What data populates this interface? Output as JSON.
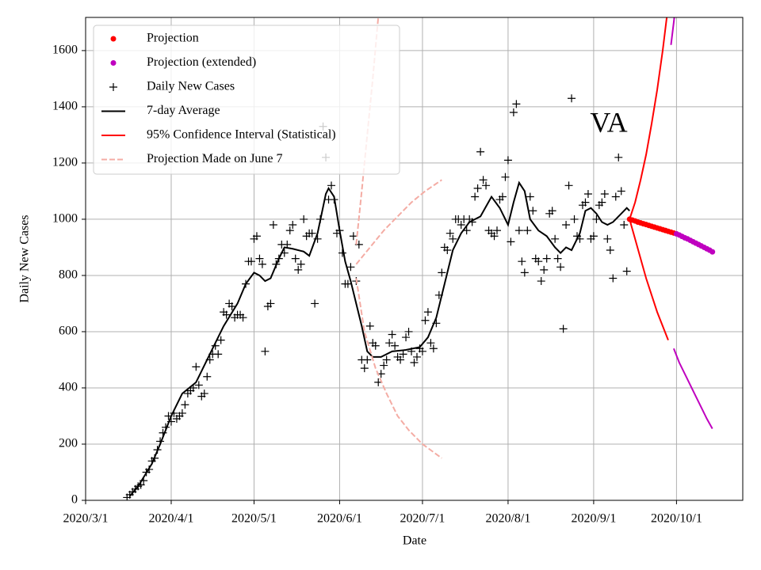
{
  "chart_data": {
    "type": "line",
    "annotation": "VA",
    "xlabel": "Date",
    "ylabel": "Daily New Cases",
    "xlim": [
      "2020-03-01",
      "2020-10-25"
    ],
    "xticks": [
      {
        "value": "2020-03-01",
        "label": "2020/3/1"
      },
      {
        "value": "2020-04-01",
        "label": "2020/4/1"
      },
      {
        "value": "2020-05-01",
        "label": "2020/5/1"
      },
      {
        "value": "2020-06-01",
        "label": "2020/6/1"
      },
      {
        "value": "2020-07-01",
        "label": "2020/7/1"
      },
      {
        "value": "2020-08-01",
        "label": "2020/8/1"
      },
      {
        "value": "2020-09-01",
        "label": "2020/9/1"
      },
      {
        "value": "2020-10-01",
        "label": "2020/10/1"
      }
    ],
    "ylim": [
      0,
      1718
    ],
    "yticks": [
      0,
      200,
      400,
      600,
      800,
      1000,
      1200,
      1400,
      1600
    ],
    "grid": true,
    "legend": "upper left",
    "series": [
      {
        "name": "Projection",
        "style": "dot",
        "color": "#ff0000",
        "x": [
          "2020-09-14",
          "2020-09-15",
          "2020-09-16",
          "2020-09-17",
          "2020-09-18",
          "2020-09-19",
          "2020-09-20",
          "2020-09-21",
          "2020-09-22",
          "2020-09-23",
          "2020-09-24",
          "2020-09-25",
          "2020-09-26",
          "2020-09-27",
          "2020-09-28",
          "2020-09-29",
          "2020-09-30"
        ],
        "values": [
          1000,
          997,
          994,
          990,
          987,
          984,
          981,
          978,
          975,
          972,
          969,
          966,
          963,
          960,
          957,
          954,
          951
        ]
      },
      {
        "name": "Projection (extended)",
        "style": "dot",
        "color": "#bf00bf",
        "x": [
          "2020-10-01",
          "2020-10-02",
          "2020-10-03",
          "2020-10-04",
          "2020-10-05",
          "2020-10-06",
          "2020-10-07",
          "2020-10-08",
          "2020-10-09",
          "2020-10-10",
          "2020-10-11",
          "2020-10-12",
          "2020-10-13",
          "2020-10-14"
        ],
        "values": [
          948,
          944,
          939,
          934,
          930,
          925,
          920,
          915,
          910,
          905,
          900,
          895,
          890,
          884
        ]
      },
      {
        "name": "Daily New Cases",
        "style": "plus",
        "color": "#000000",
        "x": [
          "2020-03-16",
          "2020-03-17",
          "2020-03-18",
          "2020-03-19",
          "2020-03-20",
          "2020-03-21",
          "2020-03-22",
          "2020-03-23",
          "2020-03-24",
          "2020-03-25",
          "2020-03-26",
          "2020-03-27",
          "2020-03-28",
          "2020-03-29",
          "2020-03-30",
          "2020-03-31",
          "2020-04-01",
          "2020-04-02",
          "2020-04-03",
          "2020-04-04",
          "2020-04-05",
          "2020-04-06",
          "2020-04-07",
          "2020-04-08",
          "2020-04-09",
          "2020-04-10",
          "2020-04-11",
          "2020-04-12",
          "2020-04-13",
          "2020-04-14",
          "2020-04-15",
          "2020-04-16",
          "2020-04-17",
          "2020-04-18",
          "2020-04-19",
          "2020-04-20",
          "2020-04-21",
          "2020-04-22",
          "2020-04-23",
          "2020-04-24",
          "2020-04-25",
          "2020-04-26",
          "2020-04-27",
          "2020-04-28",
          "2020-04-29",
          "2020-04-30",
          "2020-05-01",
          "2020-05-02",
          "2020-05-03",
          "2020-05-04",
          "2020-05-05",
          "2020-05-06",
          "2020-05-07",
          "2020-05-08",
          "2020-05-09",
          "2020-05-10",
          "2020-05-11",
          "2020-05-12",
          "2020-05-13",
          "2020-05-14",
          "2020-05-15",
          "2020-05-16",
          "2020-05-17",
          "2020-05-18",
          "2020-05-19",
          "2020-05-20",
          "2020-05-21",
          "2020-05-22",
          "2020-05-23",
          "2020-05-24",
          "2020-05-25",
          "2020-05-26",
          "2020-05-27",
          "2020-05-28",
          "2020-05-29",
          "2020-05-30",
          "2020-05-31",
          "2020-06-01",
          "2020-06-02",
          "2020-06-03",
          "2020-06-04",
          "2020-06-05",
          "2020-06-06",
          "2020-06-07",
          "2020-06-08",
          "2020-06-09",
          "2020-06-10",
          "2020-06-11",
          "2020-06-12",
          "2020-06-13",
          "2020-06-14",
          "2020-06-15",
          "2020-06-16",
          "2020-06-17",
          "2020-06-18",
          "2020-06-19",
          "2020-06-20",
          "2020-06-21",
          "2020-06-22",
          "2020-06-23",
          "2020-06-24",
          "2020-06-25",
          "2020-06-26",
          "2020-06-27",
          "2020-06-28",
          "2020-06-29",
          "2020-06-30",
          "2020-07-01",
          "2020-07-02",
          "2020-07-03",
          "2020-07-04",
          "2020-07-05",
          "2020-07-06",
          "2020-07-07",
          "2020-07-08",
          "2020-07-09",
          "2020-07-10",
          "2020-07-11",
          "2020-07-12",
          "2020-07-13",
          "2020-07-14",
          "2020-07-15",
          "2020-07-16",
          "2020-07-17",
          "2020-07-18",
          "2020-07-19",
          "2020-07-20",
          "2020-07-21",
          "2020-07-22",
          "2020-07-23",
          "2020-07-24",
          "2020-07-25",
          "2020-07-26",
          "2020-07-27",
          "2020-07-28",
          "2020-07-29",
          "2020-07-30",
          "2020-07-31",
          "2020-08-01",
          "2020-08-02",
          "2020-08-03",
          "2020-08-04",
          "2020-08-05",
          "2020-08-06",
          "2020-08-07",
          "2020-08-08",
          "2020-08-09",
          "2020-08-10",
          "2020-08-11",
          "2020-08-12",
          "2020-08-13",
          "2020-08-14",
          "2020-08-15",
          "2020-08-16",
          "2020-08-17",
          "2020-08-18",
          "2020-08-19",
          "2020-08-20",
          "2020-08-21",
          "2020-08-22",
          "2020-08-23",
          "2020-08-24",
          "2020-08-25",
          "2020-08-26",
          "2020-08-27",
          "2020-08-28",
          "2020-08-29",
          "2020-08-30",
          "2020-08-31",
          "2020-09-01",
          "2020-09-02",
          "2020-09-03",
          "2020-09-04",
          "2020-09-05",
          "2020-09-06",
          "2020-09-07",
          "2020-09-08",
          "2020-09-09",
          "2020-09-10",
          "2020-09-11",
          "2020-09-12",
          "2020-09-13"
        ],
        "values": [
          10,
          20,
          30,
          40,
          50,
          55,
          70,
          100,
          110,
          140,
          150,
          180,
          210,
          240,
          260,
          300,
          280,
          310,
          290,
          300,
          310,
          340,
          380,
          390,
          400,
          475,
          410,
          370,
          380,
          440,
          500,
          520,
          550,
          520,
          570,
          670,
          660,
          700,
          690,
          650,
          660,
          660,
          650,
          770,
          850,
          850,
          930,
          940,
          860,
          840,
          530,
          690,
          700,
          980,
          840,
          860,
          910,
          880,
          910,
          960,
          980,
          860,
          820,
          840,
          1000,
          940,
          950,
          950,
          700,
          930,
          1000,
          1330,
          1220,
          1070,
          1120,
          1070,
          950,
          960,
          880,
          770,
          770,
          830,
          940,
          780,
          910,
          500,
          470,
          500,
          620,
          560,
          550,
          420,
          450,
          480,
          500,
          560,
          590,
          550,
          510,
          500,
          520,
          580,
          600,
          530,
          490,
          510,
          540,
          530,
          640,
          670,
          560,
          540,
          630,
          730,
          810,
          900,
          890,
          950,
          930,
          1000,
          1000,
          980,
          1000,
          960,
          1000,
          990,
          1080,
          1110,
          1240,
          1140,
          1120,
          960,
          950,
          940,
          960,
          1070,
          1080,
          1150,
          1210,
          920,
          1380,
          1410,
          960,
          850,
          810,
          960,
          1080,
          1030,
          860,
          850,
          780,
          820,
          860,
          1020,
          1030,
          930,
          860,
          830,
          610,
          980,
          1120,
          1430,
          1000,
          940,
          930,
          1050,
          1060,
          1090,
          930,
          940,
          1000,
          1050,
          1060,
          1090,
          930,
          890,
          790,
          1080,
          1220,
          1100,
          980,
          815
        ]
      },
      {
        "name": "7-day Average",
        "style": "line",
        "color": "#000000",
        "x": [
          "2020-03-17",
          "2020-03-20",
          "2020-03-25",
          "2020-03-28",
          "2020-04-01",
          "2020-04-05",
          "2020-04-10",
          "2020-04-15",
          "2020-04-20",
          "2020-04-25",
          "2020-04-28",
          "2020-05-01",
          "2020-05-03",
          "2020-05-05",
          "2020-05-07",
          "2020-05-10",
          "2020-05-12",
          "2020-05-15",
          "2020-05-19",
          "2020-05-21",
          "2020-05-24",
          "2020-05-27",
          "2020-05-28",
          "2020-05-30",
          "2020-06-01",
          "2020-06-03",
          "2020-06-05",
          "2020-06-07",
          "2020-06-09",
          "2020-06-11",
          "2020-06-13",
          "2020-06-16",
          "2020-06-20",
          "2020-06-25",
          "2020-06-30",
          "2020-07-03",
          "2020-07-06",
          "2020-07-09",
          "2020-07-12",
          "2020-07-15",
          "2020-07-18",
          "2020-07-22",
          "2020-07-26",
          "2020-07-29",
          "2020-08-01",
          "2020-08-03",
          "2020-08-05",
          "2020-08-07",
          "2020-08-09",
          "2020-08-12",
          "2020-08-15",
          "2020-08-18",
          "2020-08-20",
          "2020-08-22",
          "2020-08-24",
          "2020-08-27",
          "2020-08-29",
          "2020-08-31",
          "2020-09-02",
          "2020-09-04",
          "2020-09-06",
          "2020-09-08",
          "2020-09-11",
          "2020-09-13",
          "2020-09-14"
        ],
        "values": [
          15,
          50,
          130,
          200,
          300,
          380,
          420,
          520,
          620,
          700,
          770,
          810,
          800,
          780,
          790,
          860,
          900,
          895,
          885,
          870,
          950,
          1090,
          1110,
          1080,
          960,
          850,
          780,
          700,
          620,
          530,
          510,
          510,
          530,
          535,
          545,
          580,
          650,
          770,
          890,
          950,
          990,
          1010,
          1080,
          1040,
          980,
          1060,
          1130,
          1100,
          1000,
          960,
          940,
          900,
          880,
          900,
          890,
          950,
          1030,
          1040,
          1020,
          990,
          980,
          990,
          1020,
          1040,
          1030
        ]
      },
      {
        "name": "95% Confidence Interval (Statistical)",
        "style": "line",
        "color": "#ff0000",
        "segments": [
          {
            "color": "#ff0000",
            "x": [
              "2020-09-14",
              "2020-09-16",
              "2020-09-18",
              "2020-09-20",
              "2020-09-22",
              "2020-09-24",
              "2020-09-26",
              "2020-09-28"
            ],
            "values": [
              1000,
              1060,
              1140,
              1230,
              1340,
              1460,
              1600,
              1760
            ]
          },
          {
            "color": "#ff0000",
            "x": [
              "2020-09-14",
              "2020-09-16",
              "2020-09-18",
              "2020-09-20",
              "2020-09-22",
              "2020-09-24",
              "2020-09-26",
              "2020-09-28"
            ],
            "values": [
              1000,
              930,
              860,
              790,
              730,
              670,
              620,
              570
            ]
          },
          {
            "color": "#bf00bf",
            "x": [
              "2020-09-29",
              "2020-09-30",
              "2020-10-01"
            ],
            "values": [
              1620,
              1700,
              1790
            ]
          },
          {
            "color": "#bf00bf",
            "x": [
              "2020-09-30",
              "2020-10-02",
              "2020-10-04",
              "2020-10-06",
              "2020-10-08",
              "2020-10-10",
              "2020-10-12",
              "2020-10-14"
            ],
            "values": [
              540,
              490,
              450,
              410,
              370,
              330,
              290,
              255
            ]
          }
        ]
      },
      {
        "name": "Projection Made on June 7",
        "style": "dashed",
        "color": "#f4aca4",
        "segments": [
          {
            "x": [
              "2020-06-07",
              "2020-06-09",
              "2020-06-11",
              "2020-06-13",
              "2020-06-15"
            ],
            "values": [
              910,
              1100,
              1300,
              1500,
              1720
            ]
          },
          {
            "x": [
              "2020-06-07",
              "2020-06-12",
              "2020-06-17",
              "2020-06-22",
              "2020-06-27",
              "2020-07-02",
              "2020-07-08"
            ],
            "values": [
              840,
              900,
              960,
              1010,
              1060,
              1100,
              1140
            ]
          },
          {
            "x": [
              "2020-06-07",
              "2020-06-10",
              "2020-06-14",
              "2020-06-18",
              "2020-06-22",
              "2020-06-26",
              "2020-07-01",
              "2020-07-08"
            ],
            "values": [
              790,
              600,
              470,
              380,
              300,
              250,
              200,
              150
            ]
          }
        ]
      }
    ]
  }
}
